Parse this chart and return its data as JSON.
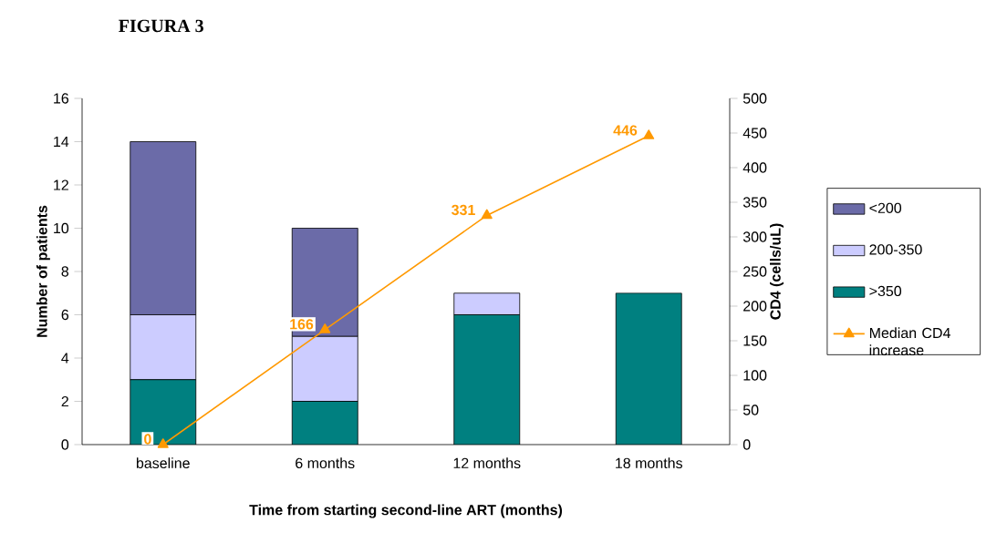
{
  "chart_data": {
    "type": "bar",
    "stacked": true,
    "title": "FIGURA 3",
    "xlabel": "Time from starting second-line ART (months)",
    "ylabel": "Number of patients",
    "y2label": "CD4 (cells/uL)",
    "categories": [
      "baseline",
      "6 months",
      "12 months",
      "18 months"
    ],
    "series": [
      {
        "name": ">350",
        "color": "#008080",
        "values": [
          3,
          2,
          6,
          7
        ]
      },
      {
        "name": "200-350",
        "color": "#ccccff",
        "values": [
          3,
          3,
          1,
          0
        ]
      },
      {
        "name": "<200",
        "color": "#6b6ba8",
        "values": [
          8,
          5,
          0,
          0
        ]
      },
      {
        "name": "Median CD4 increase",
        "type": "line",
        "axis": "y2",
        "color": "#ff9900",
        "marker": "triangle",
        "data_labels": true,
        "values": [
          0,
          166,
          331,
          446
        ]
      }
    ],
    "ylim": [
      0,
      16
    ],
    "yticks": [
      0,
      2,
      4,
      6,
      8,
      10,
      12,
      14,
      16
    ],
    "y2lim": [
      0,
      500
    ],
    "y2ticks": [
      0,
      50,
      100,
      150,
      200,
      250,
      300,
      350,
      400,
      450,
      500
    ],
    "legend": "right",
    "grid": false
  }
}
